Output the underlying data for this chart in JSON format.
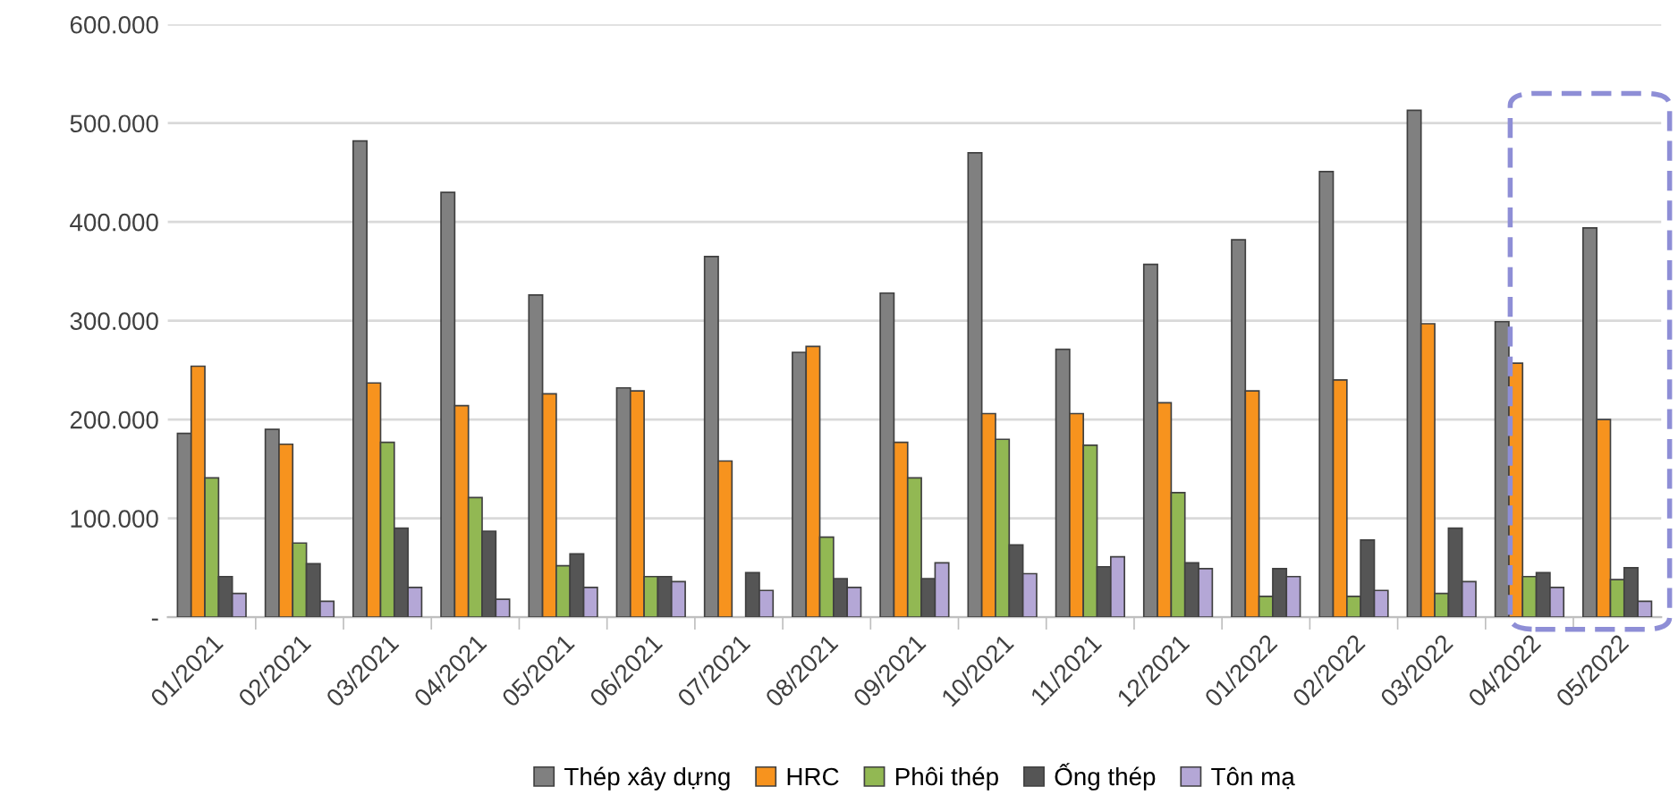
{
  "chart_data": {
    "type": "bar",
    "categories": [
      "01/2021",
      "02/2021",
      "03/2021",
      "04/2021",
      "05/2021",
      "06/2021",
      "07/2021",
      "08/2021",
      "09/2021",
      "10/2021",
      "11/2021",
      "12/2021",
      "01/2022",
      "02/2022",
      "03/2022",
      "04/2022",
      "05/2022"
    ],
    "series": [
      {
        "name": "Thép xây dựng",
        "color": "#808080",
        "values": [
          186000,
          190000,
          482000,
          430000,
          326000,
          232000,
          365000,
          268000,
          328000,
          470000,
          271000,
          357000,
          382000,
          451000,
          513000,
          299000,
          394000
        ]
      },
      {
        "name": "HRC",
        "color": "#f7931e",
        "values": [
          254000,
          175000,
          237000,
          214000,
          226000,
          229000,
          158000,
          274000,
          177000,
          206000,
          206000,
          217000,
          229000,
          240000,
          297000,
          257000,
          200000
        ]
      },
      {
        "name": "Phôi thép",
        "color": "#92b853",
        "values": [
          141000,
          75000,
          177000,
          121000,
          52000,
          41000,
          null,
          81000,
          141000,
          180000,
          174000,
          126000,
          21000,
          21000,
          24000,
          41000,
          38000
        ]
      },
      {
        "name": "Ống thép",
        "color": "#555555",
        "values": [
          41000,
          54000,
          90000,
          87000,
          64000,
          41000,
          45000,
          39000,
          39000,
          73000,
          51000,
          55000,
          49000,
          78000,
          90000,
          45000,
          50000
        ]
      },
      {
        "name": "Tôn mạ",
        "color": "#b4a7d6",
        "values": [
          24000,
          16000,
          30000,
          18000,
          30000,
          36000,
          27000,
          30000,
          55000,
          44000,
          61000,
          49000,
          41000,
          27000,
          36000,
          30000,
          16000
        ]
      }
    ],
    "ylim": [
      0,
      600000
    ],
    "yticks": [
      {
        "value": 0,
        "label": "-"
      },
      {
        "value": 100000,
        "label": "100.000"
      },
      {
        "value": 200000,
        "label": "200.000"
      },
      {
        "value": 300000,
        "label": "300.000"
      },
      {
        "value": 400000,
        "label": "400.000"
      },
      {
        "value": 500000,
        "label": "500.000"
      },
      {
        "value": 600000,
        "label": "600.000"
      }
    ],
    "grid": "y",
    "legend": "bottom"
  }
}
